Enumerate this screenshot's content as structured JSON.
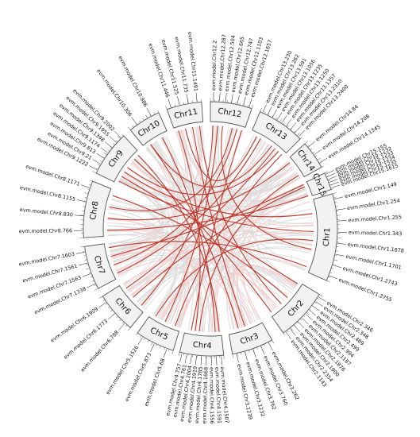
{
  "chromosomes": [
    {
      "id": "Chr1",
      "label": "Chr1"
    },
    {
      "id": "Chr2",
      "label": "Chr2"
    },
    {
      "id": "Chr3",
      "label": "Chr3"
    },
    {
      "id": "Chr4",
      "label": "Chr4"
    },
    {
      "id": "Chr5",
      "label": "Chr5"
    },
    {
      "id": "Chr6",
      "label": "Chr6"
    },
    {
      "id": "Chr7",
      "label": "Chr7"
    },
    {
      "id": "Chr8",
      "label": "Chr8"
    },
    {
      "id": "Chr9",
      "label": "Chr9"
    },
    {
      "id": "Chr10",
      "label": "Chr10"
    },
    {
      "id": "Chr11",
      "label": "Chr11"
    },
    {
      "id": "Chr12",
      "label": "Chr12"
    },
    {
      "id": "Chr13",
      "label": "Chr13"
    },
    {
      "id": "Chr14",
      "label": "Chr14"
    },
    {
      "id": "Chr15",
      "label": "Chr15"
    }
  ],
  "genes": [
    {
      "chr": "Chr1",
      "name": "evm.model.Chr1.149"
    },
    {
      "chr": "Chr1",
      "name": "evm.model.Chr1.254"
    },
    {
      "chr": "Chr1",
      "name": "evm.model.Chr1.255"
    },
    {
      "chr": "Chr1",
      "name": "evm.model.Chr1.343"
    },
    {
      "chr": "Chr1",
      "name": "evm.model.Chr1.1678"
    },
    {
      "chr": "Chr1",
      "name": "evm.model.Chr1.1701"
    },
    {
      "chr": "Chr1",
      "name": "evm.model.Chr1.2743"
    },
    {
      "chr": "Chr1",
      "name": "evm.model.Chr1.2755"
    },
    {
      "chr": "Chr2",
      "name": "evm.model.Chr2.346"
    },
    {
      "chr": "Chr2",
      "name": "evm.model.Chr2.348"
    },
    {
      "chr": "Chr2",
      "name": "evm.model.Chr2.489"
    },
    {
      "chr": "Chr2",
      "name": "evm.model.Chr2.499"
    },
    {
      "chr": "Chr2",
      "name": "evm.model.Chr2.994"
    },
    {
      "chr": "Chr2",
      "name": "evm.model.Chr2.1187"
    },
    {
      "chr": "Chr2",
      "name": "evm.model.Chr2.1876"
    },
    {
      "chr": "Chr2",
      "name": "evm.model.Chr2.1900"
    },
    {
      "chr": "Chr2",
      "name": "evm.model.Chr2.2354"
    },
    {
      "chr": "Chr2",
      "name": "evm.model.Chr2.1143"
    },
    {
      "chr": "Chr3",
      "name": "evm.model.Chr3.262"
    },
    {
      "chr": "Chr3",
      "name": "evm.model.Chr3.760"
    },
    {
      "chr": "Chr3",
      "name": "evm.model.Chr3.762"
    },
    {
      "chr": "Chr3",
      "name": "evm.model.Chr3.1232"
    },
    {
      "chr": "Chr3",
      "name": "evm.model.Chr3.1239"
    },
    {
      "chr": "Chr4",
      "name": "evm.model.Chr4.1507"
    },
    {
      "chr": "Chr4",
      "name": "evm.model.Chr4.1591"
    },
    {
      "chr": "Chr4",
      "name": "evm.model.Chr4.1556"
    },
    {
      "chr": "Chr4",
      "name": "evm.model.Chr4.1668"
    },
    {
      "chr": "Chr4",
      "name": "evm.model.Chr4.1785"
    },
    {
      "chr": "Chr4",
      "name": "evm.model.Chr4.1919"
    },
    {
      "chr": "Chr4",
      "name": "evm.model.Chr4.2004"
    },
    {
      "chr": "Chr4",
      "name": "evm.model.Chr4.761"
    },
    {
      "chr": "Chr4",
      "name": "evm.model.Chr4.757"
    },
    {
      "chr": "Chr5",
      "name": "evm.model.Chr5.68"
    },
    {
      "chr": "Chr5",
      "name": "evm.model.Chr5.873"
    },
    {
      "chr": "Chr5",
      "name": "evm.model.Chr5.1526"
    },
    {
      "chr": "Chr6",
      "name": "evm.model.Chr6.788"
    },
    {
      "chr": "Chr6",
      "name": "evm.model.Chr6.1773"
    },
    {
      "chr": "Chr6",
      "name": "evm.model.Chr6.1909"
    },
    {
      "chr": "Chr7",
      "name": "evm.model.Chr7.1338"
    },
    {
      "chr": "Chr7",
      "name": "evm.model.Chr7.1563"
    },
    {
      "chr": "Chr7",
      "name": "evm.model.Chr7.1561"
    },
    {
      "chr": "Chr7",
      "name": "evm.model.Chr7.1603"
    },
    {
      "chr": "Chr8",
      "name": "evm.model.Chr8.766"
    },
    {
      "chr": "Chr8",
      "name": "evm.model.Chr8.830"
    },
    {
      "chr": "Chr8",
      "name": "evm.model.Chr8.1155"
    },
    {
      "chr": "Chr8",
      "name": "evm.model.Chr8.1171"
    },
    {
      "chr": "Chr9",
      "name": "evm.model.Chr9.1222"
    },
    {
      "chr": "Chr9",
      "name": "evm.model.Chr9.21"
    },
    {
      "chr": "Chr9",
      "name": "evm.model.Chr9.813"
    },
    {
      "chr": "Chr9",
      "name": "evm.model.Chr9.1174"
    },
    {
      "chr": "Chr9",
      "name": "evm.model.Chr9.1398"
    },
    {
      "chr": "Chr9",
      "name": "evm.model.Chr9.1955"
    },
    {
      "chr": "Chr9",
      "name": "evm.model.Chr9.2002"
    },
    {
      "chr": "Chr10",
      "name": "evm.model.Chr10.306"
    },
    {
      "chr": "Chr10",
      "name": "evm.model.Chr10.986"
    },
    {
      "chr": "Chr11",
      "name": "evm.model.Chr11.446"
    },
    {
      "chr": "Chr11",
      "name": "evm.model.Chr11.525"
    },
    {
      "chr": "Chr11",
      "name": "evm.model.Chr11.735"
    },
    {
      "chr": "Chr11",
      "name": "evm.model.Chr11.1491"
    },
    {
      "chr": "Chr12",
      "name": "evm.model.Chr12.2"
    },
    {
      "chr": "Chr12",
      "name": "evm.model.Chr12.287"
    },
    {
      "chr": "Chr12",
      "name": "evm.model.Chr12.504"
    },
    {
      "chr": "Chr12",
      "name": "evm.model.Chr12.665"
    },
    {
      "chr": "Chr12",
      "name": "evm.model.Chr12.747"
    },
    {
      "chr": "Chr12",
      "name": "evm.model.Chr12.1103"
    },
    {
      "chr": "Chr12",
      "name": "evm.model.Chr12.1657"
    },
    {
      "chr": "Chr13",
      "name": "evm.model.Chr13.230"
    },
    {
      "chr": "Chr13",
      "name": "evm.model.Chr13.262"
    },
    {
      "chr": "Chr13",
      "name": "evm.model.Chr13.591"
    },
    {
      "chr": "Chr13",
      "name": "evm.model.Chr13.1056"
    },
    {
      "chr": "Chr13",
      "name": "evm.model.Chr13.1235"
    },
    {
      "chr": "Chr13",
      "name": "evm.model.Chr13.1250"
    },
    {
      "chr": "Chr13",
      "name": "evm.model.Chr13.1357"
    },
    {
      "chr": "Chr13",
      "name": "evm.model.Chr13.2310"
    },
    {
      "chr": "Chr13",
      "name": "evm.model.Chr13.2400"
    },
    {
      "chr": "Chr14",
      "name": "evm.model.Chr14.84"
    },
    {
      "chr": "Chr14",
      "name": "evm.model.Chr14.208"
    },
    {
      "chr": "Chr14",
      "name": "evm.model.Chr14.1345"
    },
    {
      "chr": "Chr15",
      "name": "evm.model.Chr15.155"
    },
    {
      "chr": "Chr15",
      "name": "evm.model.Chr15.1232"
    },
    {
      "chr": "Chr15",
      "name": "evm.model.Chr15.1233"
    },
    {
      "chr": "Chr15",
      "name": "evm.model.Chr15.1234"
    },
    {
      "chr": "Chr15",
      "name": "evm.model.Chr15.1235"
    },
    {
      "chr": "Chr15",
      "name": "evm.model.Chr15.1615"
    }
  ],
  "links": [
    {
      "from": "evm.model.Chr9.2002",
      "to": "evm.model.Chr4.1507"
    },
    {
      "from": "evm.model.Chr9.1955",
      "to": "evm.model.Chr2.1143"
    },
    {
      "from": "evm.model.Chr10.306",
      "to": "evm.model.Chr13.1250"
    },
    {
      "from": "evm.model.Chr10.986",
      "to": "evm.model.Chr4.1591"
    },
    {
      "from": "evm.model.Chr11.525",
      "to": "evm.model.Chr13.262"
    },
    {
      "from": "evm.model.Chr11.735",
      "to": "evm.model.Chr3.762"
    },
    {
      "from": "evm.model.Chr11.1491",
      "to": "evm.model.Chr2.1876"
    },
    {
      "from": "evm.model.Chr12.287",
      "to": "evm.model.Chr5.873"
    },
    {
      "from": "evm.model.Chr12.504",
      "to": "evm.model.Chr1.1701"
    },
    {
      "from": "evm.model.Chr12.747",
      "to": "evm.model.Chr8.1155"
    },
    {
      "from": "evm.model.Chr12.1103",
      "to": "evm.model.Chr7.1563"
    },
    {
      "from": "evm.model.Chr12.1657",
      "to": "evm.model.Chr4.761"
    },
    {
      "from": "evm.model.Chr13.591",
      "to": "evm.model.Chr7.1338"
    },
    {
      "from": "evm.model.Chr13.1357",
      "to": "evm.model.Chr6.1909"
    },
    {
      "from": "evm.model.Chr13.2310",
      "to": "evm.model.Chr9.1174"
    },
    {
      "from": "evm.model.Chr14.84",
      "to": "evm.model.Chr8.830"
    },
    {
      "from": "evm.model.Chr14.1345",
      "to": "evm.model.Chr4.1919"
    },
    {
      "from": "evm.model.Chr15.1232",
      "to": "evm.model.Chr6.1773"
    },
    {
      "from": "evm.model.Chr15.1615",
      "to": "evm.model.Chr8.766"
    },
    {
      "from": "evm.model.Chr1.254",
      "to": "evm.model.Chr9.813"
    },
    {
      "from": "evm.model.Chr1.1678",
      "to": "evm.model.Chr5.1526"
    },
    {
      "from": "evm.model.Chr1.2755",
      "to": "evm.model.Chr7.1603"
    },
    {
      "from": "evm.model.Chr2.346",
      "to": "evm.model.Chr9.21"
    },
    {
      "from": "evm.model.Chr2.994",
      "to": "evm.model.Chr8.1171"
    },
    {
      "from": "evm.model.Chr3.1232",
      "to": "evm.model.Chr10.306"
    },
    {
      "from": "evm.model.Chr4.2004",
      "to": "evm.model.Chr11.446"
    },
    {
      "from": "evm.model.Chr5.68",
      "to": "evm.model.Chr13.2400"
    },
    {
      "from": "evm.model.Chr6.788",
      "to": "evm.model.Chr12.2"
    },
    {
      "from": "evm.model.Chr7.1561",
      "to": "evm.model.Chr15.155"
    },
    {
      "from": "evm.model.Chr9.1222",
      "to": "evm.model.Chr1.343"
    }
  ],
  "colors": {
    "link": "#c0392b",
    "background_link": "#dddddd",
    "background_link_pink": "#f6c9c9",
    "block_fill": "#f2f2f2",
    "block_stroke": "#555555",
    "tick": "#777777",
    "label": "#111111"
  }
}
